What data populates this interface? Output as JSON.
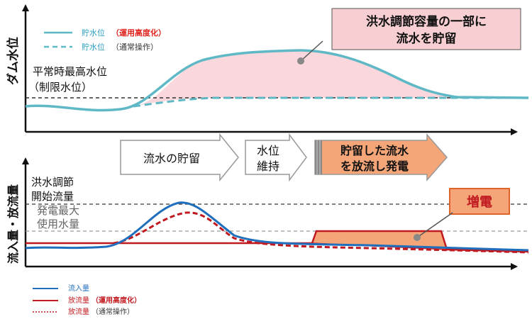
{
  "top": {
    "axis_label": "ダム水位",
    "max_level_label_1": "平常時最高水位",
    "max_level_label_2": "（制限水位）",
    "callout_line_1": "洪水調節容量の一部に",
    "callout_line_2": "流水を貯留",
    "legend": [
      {
        "name": "貯水位",
        "note": "（運用高度化）",
        "style": "solid"
      },
      {
        "name": "貯水位",
        "note": "（通常操作）",
        "style": "dashed"
      }
    ]
  },
  "flow": {
    "step1": "流水の貯留",
    "step2_line_1": "水位",
    "step2_line_2": "維持",
    "step3_line_1": "貯留した流水",
    "step3_line_2": "を放流し発電"
  },
  "bottom": {
    "axis_label": "流入量・放流量",
    "flood_start_line_1": "洪水調節",
    "flood_start_line_2": "開始流量",
    "gen_max_line_1": "発電最大",
    "gen_max_line_2": "使用水量",
    "increase_label": "増電",
    "legend": [
      {
        "name": "流入量",
        "note": "",
        "style": "solid-blue"
      },
      {
        "name": "放流量",
        "note": "（運用高度化）",
        "style": "solid-red"
      },
      {
        "name": "放流量",
        "note": "（通常操作）",
        "style": "dotted-red"
      }
    ]
  },
  "colors": {
    "teal": "#5fb8c5",
    "pink_fill": "#f9d7dc",
    "callout_fill": "#f7cfd3",
    "blue": "#1f6fbd",
    "red": "#c0191f",
    "orange": "#f4a679",
    "orange_border": "#e0642a",
    "legend_note": "#e0231e"
  }
}
